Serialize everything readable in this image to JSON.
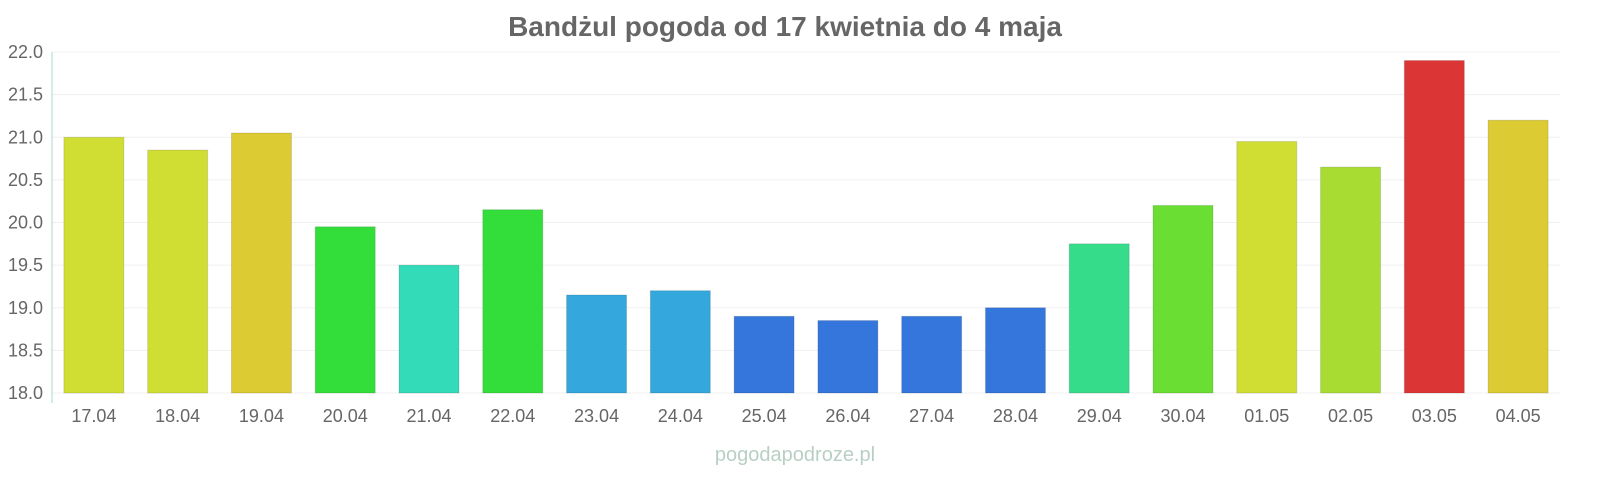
{
  "chart_data": {
    "type": "bar",
    "title": "Bandżul pogoda od 17 kwietnia do 4 maja",
    "xlabel": "",
    "ylabel": "",
    "ylim": [
      18.0,
      22.0
    ],
    "yticks": [
      "18.0",
      "18.5",
      "19.0",
      "19.5",
      "20.0",
      "20.5",
      "21.0",
      "21.5",
      "22.0"
    ],
    "grid": true,
    "categories": [
      "17.04",
      "18.04",
      "19.04",
      "20.04",
      "21.04",
      "22.04",
      "23.04",
      "24.04",
      "25.04",
      "26.04",
      "27.04",
      "28.04",
      "29.04",
      "30.04",
      "01.05",
      "02.05",
      "03.05",
      "04.05"
    ],
    "values": [
      21.0,
      20.85,
      21.05,
      19.95,
      19.5,
      20.15,
      19.15,
      19.2,
      18.9,
      18.85,
      18.9,
      19.0,
      19.75,
      20.2,
      20.95,
      20.65,
      21.9,
      21.2
    ],
    "colors": [
      "#d0de33",
      "#d0de33",
      "#dccb33",
      "#33dd3a",
      "#33dbb9",
      "#33dd3a",
      "#34a7dc",
      "#34a7dc",
      "#3476dc",
      "#3476dc",
      "#3476dc",
      "#3476dc",
      "#35dc8a",
      "#6ade33",
      "#d0de33",
      "#a8dc33",
      "#dc3535",
      "#dccb33"
    ]
  },
  "watermark": "pogodapodroze.pl"
}
